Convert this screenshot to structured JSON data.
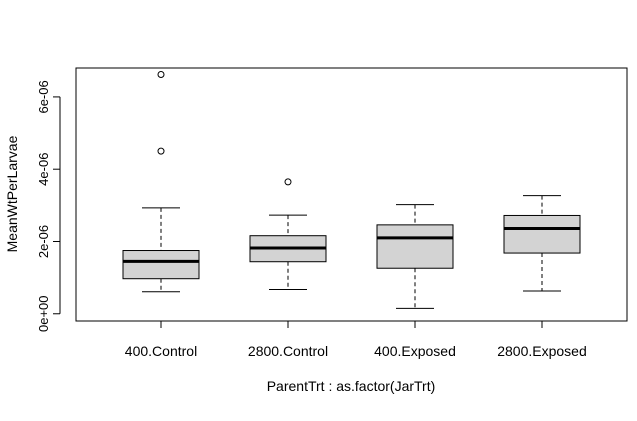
{
  "chart_data": {
    "type": "boxplot",
    "title": "",
    "xlabel": "ParentTrt : as.factor(JarTrt)",
    "ylabel": "MeanWtPerLarvae",
    "ylim": [
      -2e-07,
      6.8e-06
    ],
    "y_ticks": [
      0,
      2e-06,
      4e-06,
      6e-06
    ],
    "y_tick_labels": [
      "0e+00",
      "2e-06",
      "4e-06",
      "6e-06"
    ],
    "categories": [
      "400.Control",
      "2800.Control",
      "400.Exposed",
      "2800.Exposed"
    ],
    "boxes": [
      {
        "whisker_low": 6.1e-07,
        "q1": 9.7e-07,
        "median": 1.45e-06,
        "q3": 1.75e-06,
        "whisker_high": 2.93e-06,
        "outliers": [
          6.62e-06,
          4.5e-06
        ]
      },
      {
        "whisker_low": 6.7e-07,
        "q1": 1.44e-06,
        "median": 1.82e-06,
        "q3": 2.16e-06,
        "whisker_high": 2.73e-06,
        "outliers": [
          3.65e-06
        ]
      },
      {
        "whisker_low": 1.5e-07,
        "q1": 1.26e-06,
        "median": 2.1e-06,
        "q3": 2.46e-06,
        "whisker_high": 3.02e-06,
        "outliers": []
      },
      {
        "whisker_low": 6.3e-07,
        "q1": 1.68e-06,
        "median": 2.36e-06,
        "q3": 2.72e-06,
        "whisker_high": 3.27e-06,
        "outliers": []
      }
    ],
    "box_fill": "#d3d3d3",
    "grid": false,
    "legend": "none"
  }
}
